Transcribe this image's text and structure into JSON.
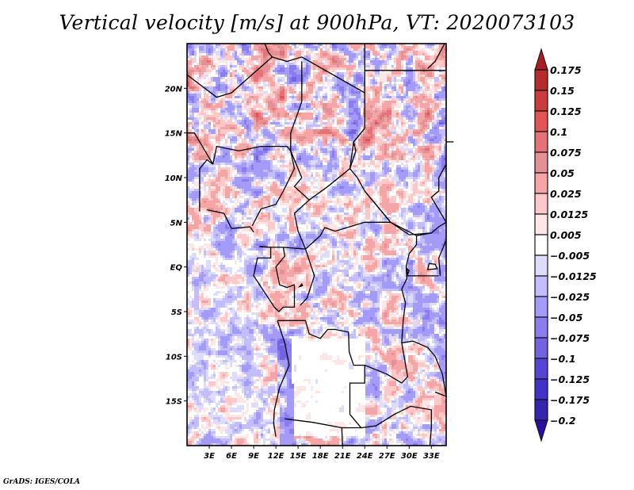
{
  "chart_data": {
    "type": "heatmap",
    "title": "Vertical velocity [m/s] at 900hPa, VT: 2020073103",
    "variable": "Vertical velocity",
    "units": "m/s",
    "level": "900hPa",
    "valid_time": "2020073103",
    "xlabel": "",
    "ylabel": "",
    "xlim": [
      0,
      35
    ],
    "ylim": [
      -20,
      25
    ],
    "x_ticks": [
      {
        "value": 3,
        "label": "3E"
      },
      {
        "value": 6,
        "label": "6E"
      },
      {
        "value": 9,
        "label": "9E"
      },
      {
        "value": 12,
        "label": "12E"
      },
      {
        "value": 15,
        "label": "15E"
      },
      {
        "value": 18,
        "label": "18E"
      },
      {
        "value": 21,
        "label": "21E"
      },
      {
        "value": 24,
        "label": "24E"
      },
      {
        "value": 27,
        "label": "27E"
      },
      {
        "value": 30,
        "label": "30E"
      },
      {
        "value": 33,
        "label": "33E"
      }
    ],
    "y_ticks": [
      {
        "value": 20,
        "label": "20N"
      },
      {
        "value": 15,
        "label": "15N"
      },
      {
        "value": 10,
        "label": "10N"
      },
      {
        "value": 5,
        "label": "5N"
      },
      {
        "value": 0,
        "label": "EQ"
      },
      {
        "value": -5,
        "label": "5S"
      },
      {
        "value": -10,
        "label": "10S"
      },
      {
        "value": -15,
        "label": "15S"
      }
    ],
    "colorbar": {
      "placement": "right",
      "extend": "both",
      "levels": [
        0.175,
        0.15,
        0.125,
        0.1,
        0.075,
        0.05,
        0.025,
        0.0125,
        0.005,
        -0.005,
        -0.0125,
        -0.025,
        -0.05,
        -0.075,
        -0.1,
        -0.125,
        -0.175,
        -0.2
      ],
      "labels": [
        "0.175",
        "0.15",
        "0.125",
        "0.1",
        "0.075",
        "0.05",
        "0.025",
        "0.0125",
        "0.005",
        "−0.005",
        "−0.0125",
        "−0.025",
        "−0.05",
        "−0.075",
        "−0.1",
        "−0.125",
        "−0.175",
        "−0.2"
      ],
      "colors": [
        "#a51e24",
        "#b72a2e",
        "#cc3b3e",
        "#e45356",
        "#e67278",
        "#e49196",
        "#f5a5a5",
        "#fcc8c8",
        "#fde6e6",
        "#ffffff",
        "#dedcfd",
        "#c3bdfb",
        "#a49af8",
        "#8b7cf0",
        "#7363e0",
        "#5644d6",
        "#4332c8",
        "#3524ae",
        "#2a0f9e"
      ]
    },
    "description": "Noisy gridded field of 900hPa vertical velocity over Central Africa (0E–35E, 20S–25N); mixture of positive (red) and negative (blue) values with country boundary overlays; largely white over Angola/Zambia plateau.",
    "colors": {
      "positive": "#e45356",
      "negative": "#7363e0",
      "neutral": "#ffffff"
    }
  },
  "footer": {
    "credit": "GrADS: IGES/COLA"
  }
}
